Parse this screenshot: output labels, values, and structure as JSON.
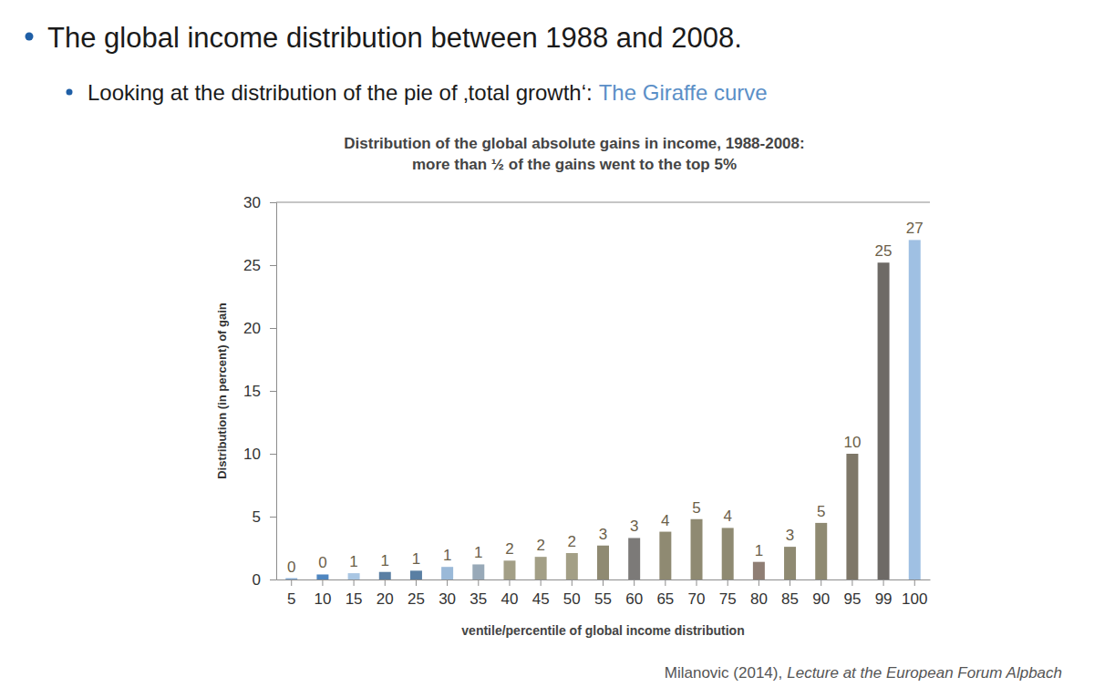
{
  "slide": {
    "bullets": [
      {
        "text": "The global income distribution between 1988 and 2008."
      },
      {
        "text": "Looking at the distribution of the pie of ‚total growth‘:",
        "highlight": "The Giraffe curve"
      }
    ],
    "source": {
      "author": "Milanovic (2014),",
      "work": "Lecture at the European Forum Alpbach"
    }
  },
  "chart_data": {
    "type": "bar",
    "title": "Distribution of the global absolute gains in income, 1988-2008:",
    "subtitle": "more than ½ of the gains went to the top 5%",
    "x_label": "ventile/percentile of global income distribution",
    "y_label": "Distribution (in percent) of gain",
    "categories": [
      "5",
      "10",
      "15",
      "20",
      "25",
      "30",
      "35",
      "40",
      "45",
      "50",
      "55",
      "60",
      "65",
      "70",
      "75",
      "80",
      "85",
      "90",
      "95",
      "99",
      "100"
    ],
    "values": [
      0.1,
      0.4,
      0.5,
      0.6,
      0.7,
      1.0,
      1.2,
      1.5,
      1.8,
      2.1,
      2.7,
      3.3,
      3.8,
      4.8,
      4.1,
      1.4,
      2.6,
      4.5,
      10,
      25.2,
      27
    ],
    "value_labels": [
      "0",
      "0",
      "1",
      "1",
      "1",
      "1",
      "1",
      "2",
      "2",
      "2",
      "3",
      "3",
      "4",
      "5",
      "4",
      "1",
      "3",
      "5",
      "10",
      "25",
      "27"
    ],
    "colors": [
      "#7fa6cf",
      "#4f86c0",
      "#a9c6e3",
      "#5a7fa3",
      "#5a7fa3",
      "#9ab9d8",
      "#98a9b8",
      "#a39f86",
      "#a39f86",
      "#a39f86",
      "#8f8a72",
      "#7c7a78",
      "#8f8a72",
      "#8f8a72",
      "#8f8a72",
      "#8f7e74",
      "#8f8a72",
      "#8f8a72",
      "#7e7768",
      "#6e6a66",
      "#9fc0e3"
    ],
    "ylim": [
      0,
      30
    ],
    "yticks": [
      0,
      5,
      10,
      15,
      20,
      25,
      30
    ],
    "grid": false,
    "data_labels": true
  }
}
